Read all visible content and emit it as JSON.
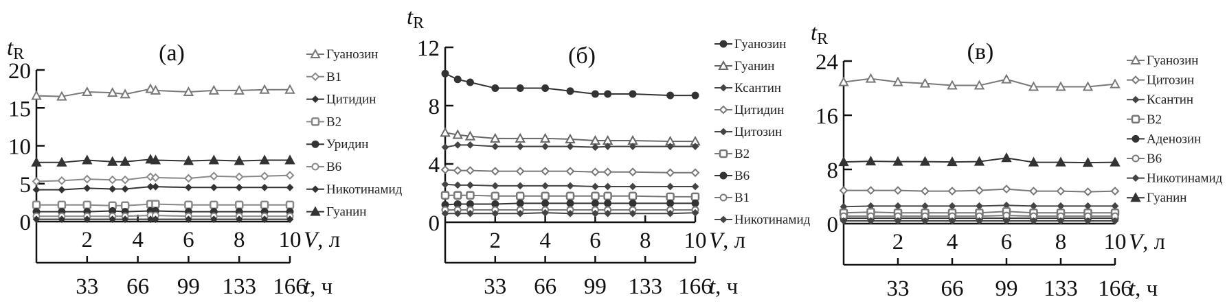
{
  "chart_data": [
    {
      "type": "line",
      "title": "(а)",
      "ylabel": "t_R",
      "ylabel_main": "t",
      "ylabel_sub": "R",
      "xlabel": "V, л",
      "xlabel_var": "V",
      "xlabel_unit": ", л",
      "x2label_var": "t",
      "x2label_unit": ", ч",
      "ylim": [
        0,
        20
      ],
      "yticks": [
        0,
        5,
        10,
        15,
        20
      ],
      "xlim": [
        0,
        10
      ],
      "xticks": [
        2,
        4,
        6,
        8,
        10
      ],
      "x2ticks": [
        "33",
        "66",
        "99",
        "133",
        "166"
      ],
      "legend": "right",
      "x": [
        0,
        1,
        2,
        3,
        3.5,
        4.5,
        4.7,
        6,
        7,
        8,
        9,
        10
      ],
      "series": [
        {
          "name": "Гуанозин",
          "marker": "triangle-open",
          "color": "#777777",
          "values": [
            16.6,
            16.5,
            17.1,
            17.0,
            16.8,
            17.5,
            17.3,
            17.1,
            17.3,
            17.3,
            17.4,
            17.4
          ]
        },
        {
          "name": "В1",
          "marker": "diamond-open",
          "color": "#888888",
          "values": [
            5.3,
            5.4,
            5.6,
            5.5,
            5.5,
            5.9,
            5.8,
            5.7,
            6.0,
            5.9,
            6.0,
            6.1
          ]
        },
        {
          "name": "Цитидин",
          "marker": "diamond-filled",
          "color": "#333333",
          "values": [
            4.2,
            4.2,
            4.4,
            4.3,
            4.3,
            4.6,
            4.6,
            4.5,
            4.5,
            4.5,
            4.5,
            4.5
          ]
        },
        {
          "name": "В2",
          "marker": "square-open",
          "color": "#888888",
          "values": [
            2.2,
            2.2,
            2.2,
            2.1,
            2.1,
            2.3,
            2.3,
            2.2,
            2.2,
            2.2,
            2.2,
            2.2
          ]
        },
        {
          "name": "Уридин",
          "marker": "circle-filled",
          "color": "#333333",
          "values": [
            1.3,
            1.3,
            1.3,
            1.4,
            1.3,
            1.4,
            1.4,
            1.3,
            1.3,
            1.3,
            1.3,
            1.3
          ]
        },
        {
          "name": "В6",
          "marker": "circle-open",
          "color": "#888888",
          "values": [
            0.7,
            0.7,
            0.7,
            0.7,
            0.7,
            0.8,
            0.8,
            0.7,
            0.7,
            0.7,
            0.7,
            0.7
          ]
        },
        {
          "name": "Никотинамид",
          "marker": "diamond-filled",
          "color": "#333333",
          "values": [
            0.3,
            0.3,
            0.3,
            0.3,
            0.3,
            0.3,
            0.3,
            0.3,
            0.3,
            0.3,
            0.3,
            0.3
          ]
        },
        {
          "name": "Гуанин",
          "marker": "triangle-filled",
          "color": "#333333",
          "values": [
            7.8,
            7.8,
            8.1,
            7.9,
            7.9,
            8.2,
            8.1,
            8.0,
            8.1,
            8.0,
            8.1,
            8.1
          ]
        }
      ]
    },
    {
      "type": "line",
      "title": "(б)",
      "ylabel": "t_R",
      "ylabel_main": "t",
      "ylabel_sub": "R",
      "xlabel": "V, л",
      "xlabel_var": "V",
      "xlabel_unit": ", л",
      "x2label_var": "t",
      "x2label_unit": ", ч",
      "ylim": [
        0,
        12
      ],
      "yticks": [
        0,
        4,
        8,
        12
      ],
      "xlim": [
        0,
        10
      ],
      "xticks": [
        2,
        4,
        6,
        8,
        10
      ],
      "x2ticks": [
        "33",
        "66",
        "99",
        "133",
        "166"
      ],
      "legend": "right",
      "x": [
        0,
        0.5,
        1,
        2,
        3,
        4,
        5,
        6,
        6.5,
        7.5,
        9,
        10
      ],
      "series": [
        {
          "name": "Гуанозин",
          "marker": "circle-filled",
          "color": "#333333",
          "values": [
            10.2,
            9.8,
            9.6,
            9.2,
            9.2,
            9.2,
            9.0,
            8.8,
            8.8,
            8.8,
            8.7,
            8.7
          ]
        },
        {
          "name": "Гуанин",
          "marker": "triangle-open",
          "color": "#666666",
          "values": [
            6.15,
            6.0,
            5.9,
            5.75,
            5.75,
            5.75,
            5.7,
            5.6,
            5.6,
            5.6,
            5.55,
            5.55
          ]
        },
        {
          "name": "Ксантин",
          "marker": "diamond-filled",
          "color": "#444444",
          "values": [
            5.15,
            5.3,
            5.3,
            5.2,
            5.2,
            5.2,
            5.2,
            5.15,
            5.2,
            5.2,
            5.2,
            5.2
          ]
        },
        {
          "name": "Цитидин",
          "marker": "diamond-open",
          "color": "#777777",
          "values": [
            3.6,
            3.55,
            3.55,
            3.5,
            3.5,
            3.5,
            3.5,
            3.45,
            3.45,
            3.45,
            3.4,
            3.4
          ]
        },
        {
          "name": "Цитозин",
          "marker": "diamond-filled",
          "color": "#444444",
          "values": [
            2.6,
            2.55,
            2.55,
            2.5,
            2.5,
            2.5,
            2.5,
            2.45,
            2.45,
            2.45,
            2.45,
            2.45
          ]
        },
        {
          "name": "В2",
          "marker": "square-open",
          "color": "#777777",
          "values": [
            1.85,
            1.85,
            1.85,
            1.8,
            1.8,
            1.8,
            1.8,
            1.8,
            1.8,
            1.8,
            1.75,
            1.75
          ]
        },
        {
          "name": "В6",
          "marker": "circle-filled",
          "color": "#333333",
          "values": [
            1.2,
            1.25,
            1.25,
            1.25,
            1.3,
            1.3,
            1.3,
            1.3,
            1.3,
            1.3,
            1.3,
            1.3
          ]
        },
        {
          "name": "В1",
          "marker": "circle-open",
          "color": "#777777",
          "values": [
            0.85,
            0.85,
            0.85,
            0.85,
            0.85,
            0.85,
            0.85,
            0.85,
            0.85,
            0.85,
            0.85,
            0.85
          ]
        },
        {
          "name": "Никотинамид",
          "marker": "diamond-filled",
          "color": "#444444",
          "values": [
            0.6,
            0.6,
            0.6,
            0.6,
            0.6,
            0.65,
            0.6,
            0.6,
            0.6,
            0.6,
            0.6,
            0.65
          ]
        }
      ]
    },
    {
      "type": "line",
      "title": "(в)",
      "ylabel": "t_R",
      "ylabel_main": "t",
      "ylabel_sub": "R",
      "xlabel": "V, л",
      "xlabel_var": "V",
      "xlabel_unit": ", л",
      "x2label_var": "t",
      "x2label_unit": ", ч",
      "ylim": [
        0,
        24
      ],
      "yticks": [
        0,
        8,
        16,
        24
      ],
      "xlim": [
        0,
        10
      ],
      "xticks": [
        2,
        4,
        6,
        8,
        10
      ],
      "x2ticks": [
        "33",
        "66",
        "99",
        "133",
        "166"
      ],
      "legend": "right",
      "x": [
        0,
        1,
        2,
        3,
        4,
        5,
        6,
        7,
        8,
        9,
        10
      ],
      "series": [
        {
          "name": "Гуанозин",
          "marker": "triangle-open",
          "color": "#777777",
          "values": [
            20.9,
            21.4,
            20.9,
            20.7,
            20.4,
            20.4,
            21.3,
            20.2,
            20.2,
            20.2,
            20.6
          ]
        },
        {
          "name": "Цитозин",
          "marker": "diamond-open",
          "color": "#777777",
          "values": [
            4.9,
            4.9,
            4.9,
            4.8,
            4.8,
            4.9,
            5.1,
            4.8,
            4.8,
            4.7,
            4.8
          ]
        },
        {
          "name": "Ксантин",
          "marker": "diamond-filled",
          "color": "#444444",
          "values": [
            2.5,
            2.6,
            2.6,
            2.6,
            2.6,
            2.6,
            2.7,
            2.6,
            2.6,
            2.6,
            2.6
          ]
        },
        {
          "name": "В2",
          "marker": "square-open",
          "color": "#777777",
          "values": [
            1.6,
            1.7,
            1.6,
            1.6,
            1.6,
            1.6,
            1.8,
            1.6,
            1.6,
            1.6,
            1.6
          ]
        },
        {
          "name": "Аденозин",
          "marker": "circle-filled",
          "color": "#333333",
          "values": [
            0.8,
            0.8,
            0.8,
            0.8,
            0.8,
            0.8,
            0.8,
            0.8,
            0.8,
            0.8,
            0.8
          ]
        },
        {
          "name": "В6",
          "marker": "circle-open",
          "color": "#777777",
          "values": [
            1.1,
            1.1,
            1.1,
            1.1,
            1.1,
            1.1,
            1.2,
            1.1,
            1.1,
            1.1,
            1.1
          ]
        },
        {
          "name": "Никотинамид",
          "marker": "diamond-filled",
          "color": "#444444",
          "values": [
            0.4,
            0.4,
            0.4,
            0.4,
            0.4,
            0.4,
            0.4,
            0.4,
            0.4,
            0.4,
            0.4
          ]
        },
        {
          "name": "Гуанин",
          "marker": "triangle-filled",
          "color": "#333333",
          "values": [
            9.1,
            9.2,
            9.15,
            9.15,
            9.1,
            9.15,
            9.7,
            9.05,
            9.05,
            9.0,
            9.05
          ]
        }
      ]
    }
  ]
}
